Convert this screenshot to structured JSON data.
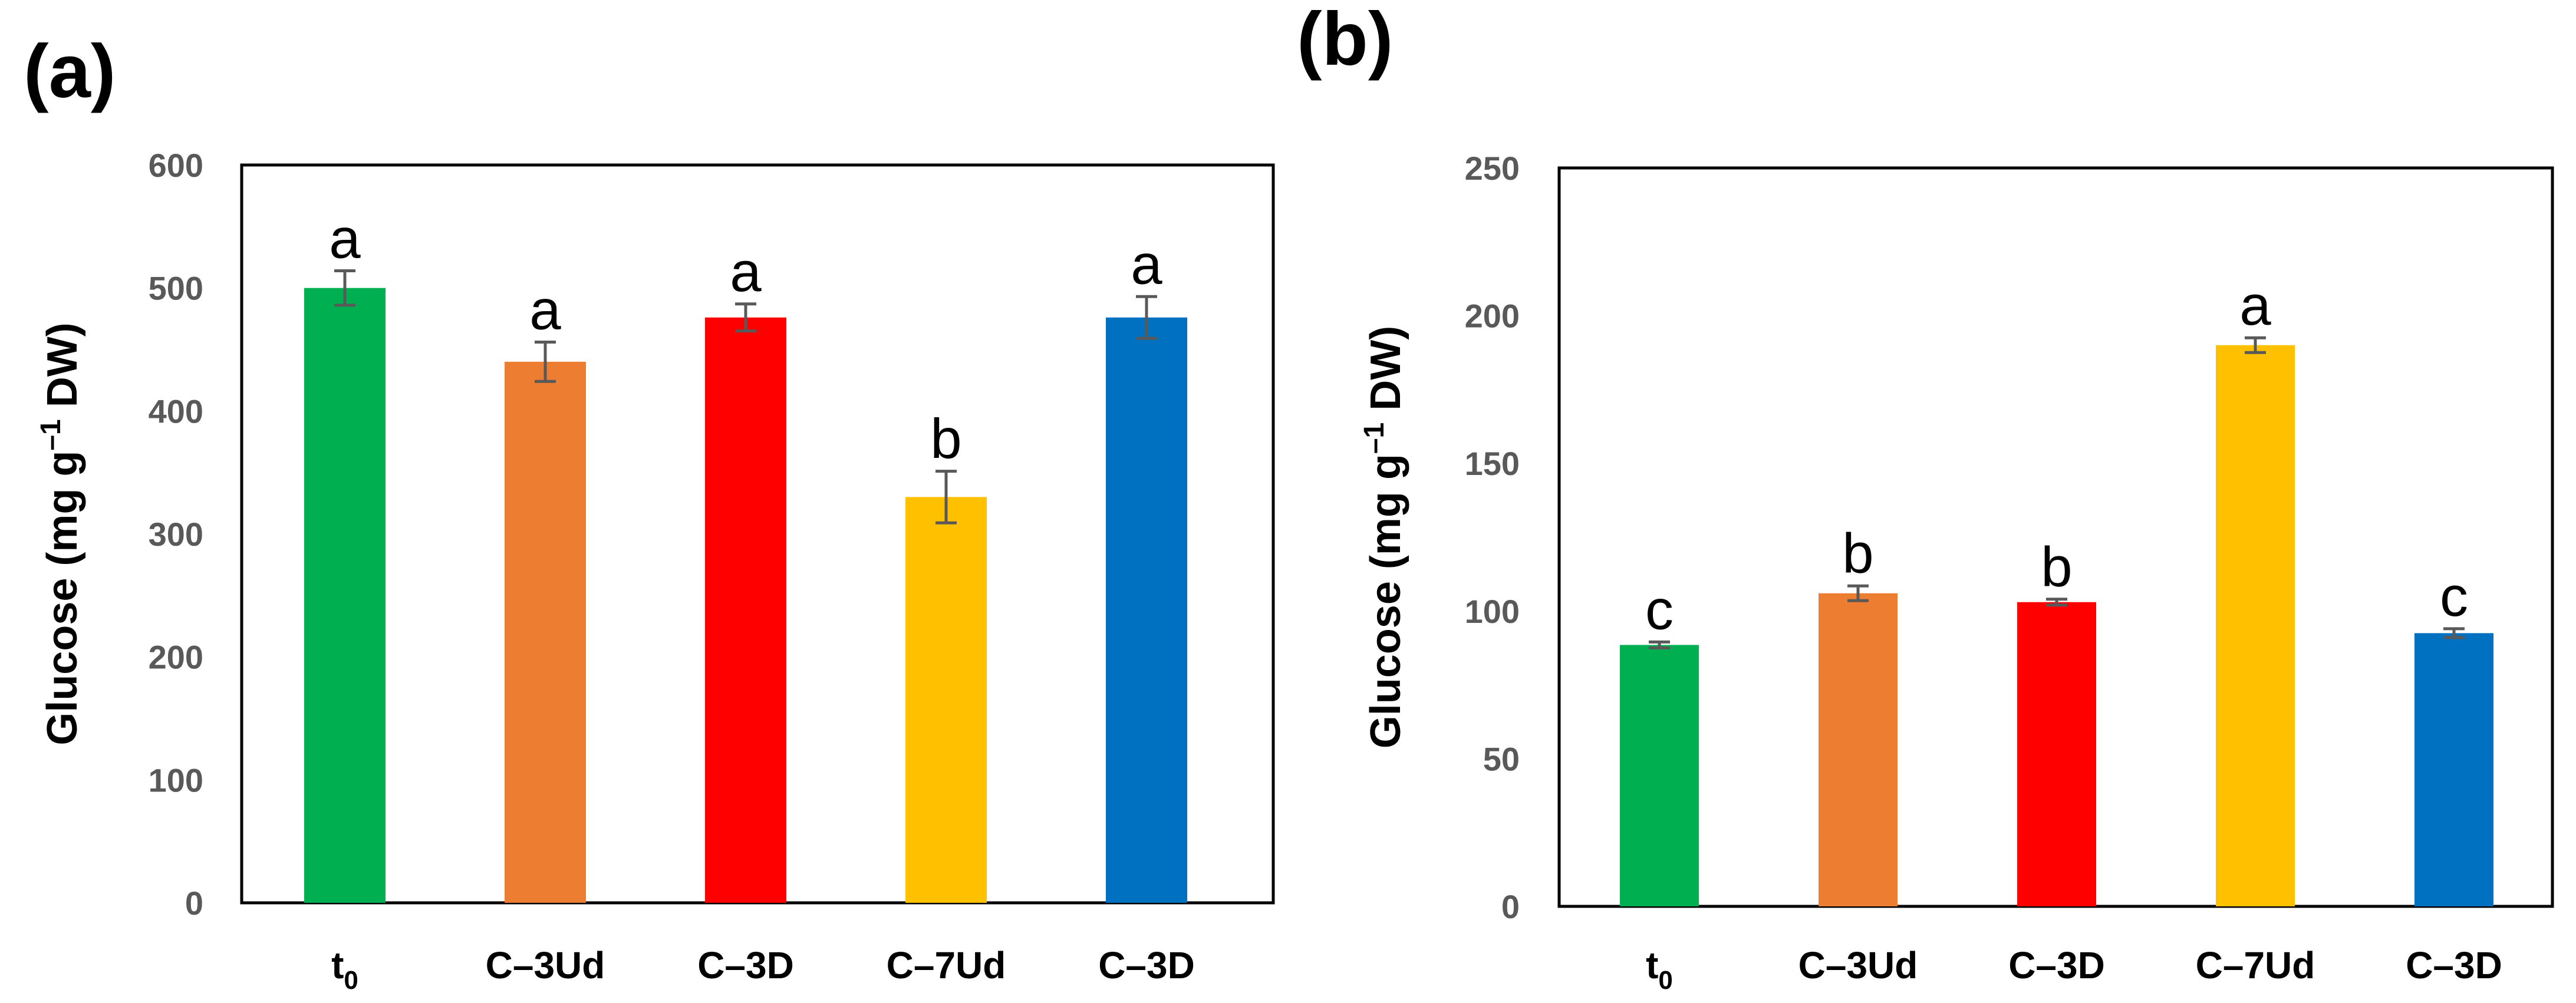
{
  "chart_data": [
    {
      "panel_label": "(a)",
      "type": "bar",
      "title": "",
      "xlabel": "",
      "ylabel_prefix": "Glucose (mg g",
      "ylabel_exp": "–1",
      "ylabel_suffix": " DW)",
      "ylim": [
        0,
        600
      ],
      "yticks": [
        0,
        100,
        200,
        300,
        400,
        500,
        600
      ],
      "grid": false,
      "categories": [
        {
          "main": "t",
          "sub": "0"
        },
        {
          "main": "C–3Ud",
          "sub": ""
        },
        {
          "main": "C–3D",
          "sub": ""
        },
        {
          "main": "C–7Ud",
          "sub": ""
        },
        {
          "main": "C–3D",
          "sub": ""
        }
      ],
      "values": [
        500,
        440,
        476,
        330,
        476
      ],
      "errors": [
        14,
        16,
        11,
        21,
        17
      ],
      "significance": [
        "a",
        "a",
        "a",
        "b",
        "a"
      ],
      "colors": [
        "#00b050",
        "#ed7d31",
        "#ff0000",
        "#ffc000",
        "#0070c0"
      ]
    },
    {
      "panel_label": "(b)",
      "type": "bar",
      "title": "",
      "xlabel": "",
      "ylabel_prefix": "Glucose (mg g",
      "ylabel_exp": "–1",
      "ylabel_suffix": " DW)",
      "ylim": [
        0,
        250
      ],
      "yticks": [
        0,
        50,
        100,
        150,
        200,
        250
      ],
      "grid": false,
      "categories": [
        {
          "main": "t",
          "sub": "0"
        },
        {
          "main": "C–3Ud",
          "sub": ""
        },
        {
          "main": "C–3D",
          "sub": ""
        },
        {
          "main": "C–7Ud",
          "sub": ""
        },
        {
          "main": "C–3D",
          "sub": ""
        }
      ],
      "values": [
        88.5,
        106,
        103,
        190,
        92.5
      ],
      "errors": [
        1,
        2.5,
        1,
        2.5,
        1.5
      ],
      "significance": [
        "c",
        "b",
        "b",
        "a",
        "c"
      ],
      "colors": [
        "#00b050",
        "#ed7d31",
        "#ff0000",
        "#ffc000",
        "#0070c0"
      ]
    }
  ]
}
